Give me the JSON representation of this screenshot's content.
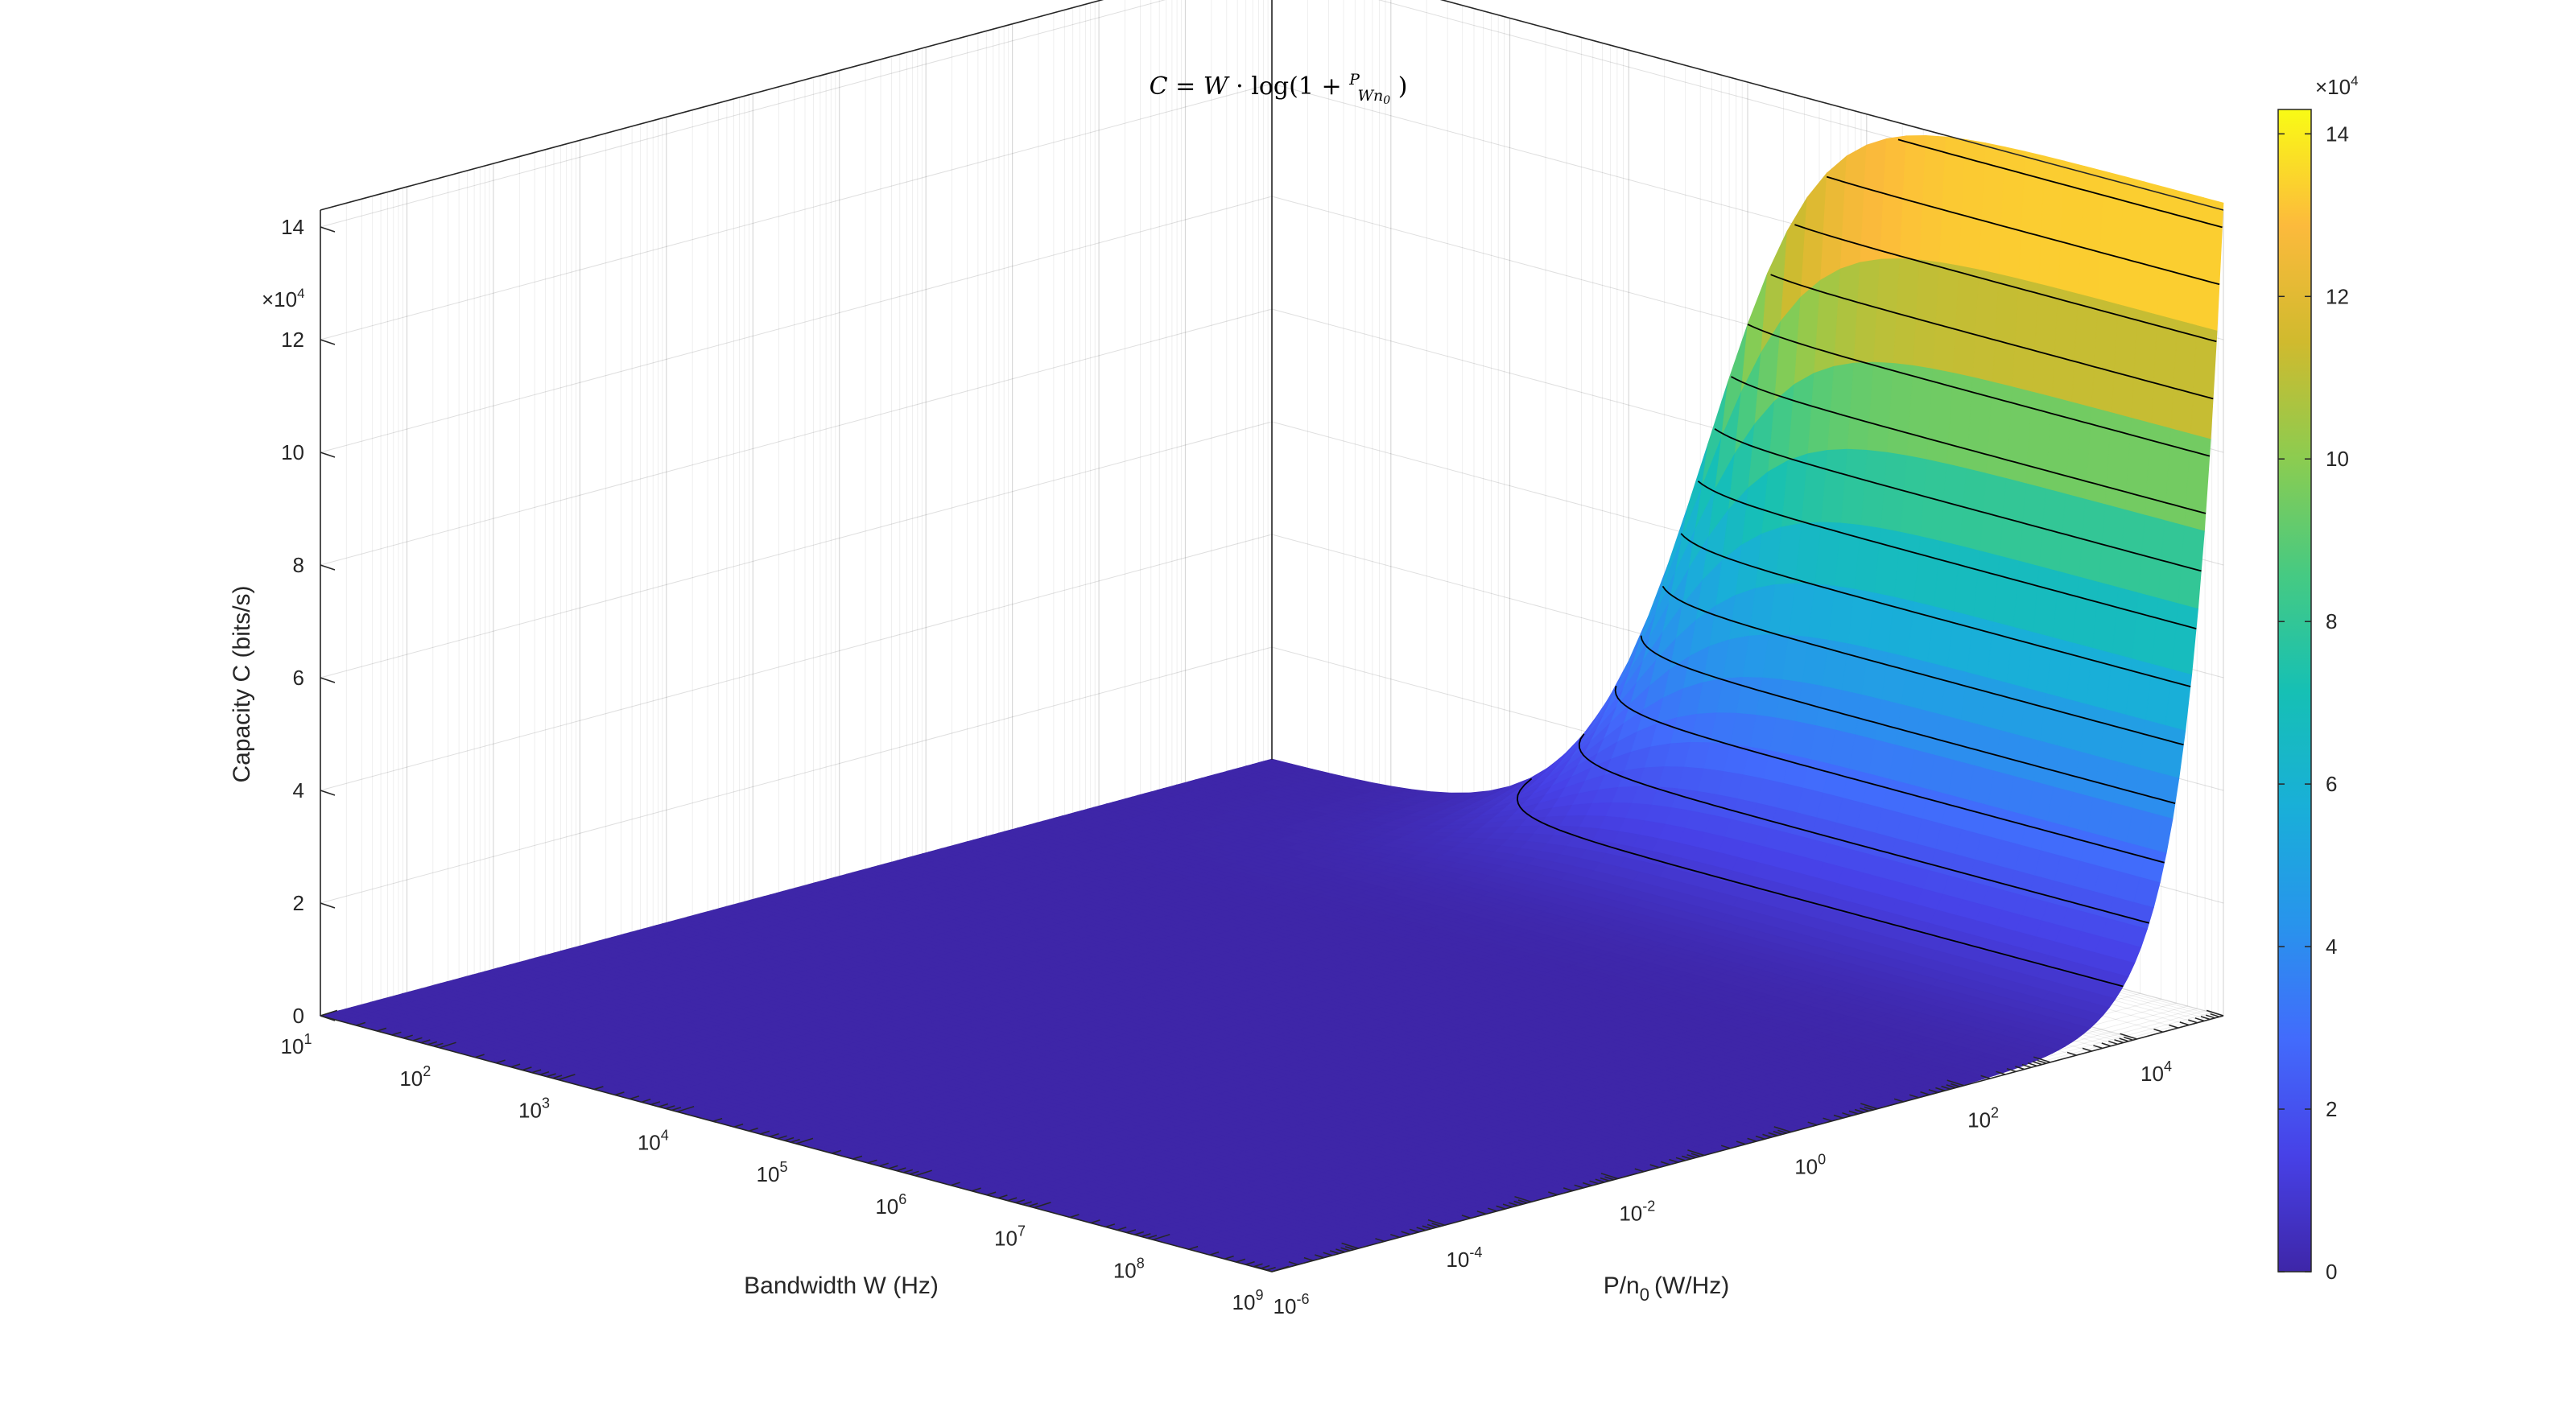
{
  "chart_data": {
    "type": "surface",
    "title": "C = W · log(1 + P / (W n0))",
    "title_parts": {
      "lhs": "C",
      "eq": "=",
      "w": "W",
      "dot": "·",
      "log": "log(1 +",
      "num": "P",
      "den": "Wn",
      "den_sub": "0",
      "close": ")"
    },
    "xlabel": "Bandwidth W (Hz)",
    "ylabel": "P/n",
    "ylabel_sub": "0",
    "ylabel_unit": "(W/Hz)",
    "zlabel": "Capacity C (bits/s)",
    "x_scale": "log",
    "y_scale": "log",
    "x_range": [
      10,
      1000000000
    ],
    "y_range": [
      1e-06,
      100000
    ],
    "z_range": [
      0,
      143000
    ],
    "x_ticks": [
      {
        "base": "10",
        "exp": "1"
      },
      {
        "base": "10",
        "exp": "2"
      },
      {
        "base": "10",
        "exp": "3"
      },
      {
        "base": "10",
        "exp": "4"
      },
      {
        "base": "10",
        "exp": "5"
      },
      {
        "base": "10",
        "exp": "6"
      },
      {
        "base": "10",
        "exp": "7"
      },
      {
        "base": "10",
        "exp": "8"
      },
      {
        "base": "10",
        "exp": "9"
      }
    ],
    "y_ticks": [
      {
        "base": "10",
        "exp": "-6"
      },
      {
        "base": "10",
        "exp": "-4"
      },
      {
        "base": "10",
        "exp": "-2"
      },
      {
        "base": "10",
        "exp": "0"
      },
      {
        "base": "10",
        "exp": "2"
      },
      {
        "base": "10",
        "exp": "4"
      }
    ],
    "z_ticks": [
      "0",
      "2",
      "4",
      "6",
      "8",
      "10",
      "12",
      "14"
    ],
    "z_multiplier": {
      "base": "×10",
      "exp": "4"
    },
    "grid": true,
    "colormap": "parula",
    "colorbar": {
      "position": "right",
      "range": [
        0,
        143000
      ],
      "ticks": [
        "0",
        "2",
        "4",
        "6",
        "8",
        "10",
        "12",
        "14"
      ],
      "multiplier": {
        "base": "×10",
        "exp": "4"
      }
    },
    "contour_levels": [
      10000,
      20000,
      30000,
      40000,
      50000,
      60000,
      70000,
      80000,
      90000,
      100000,
      110000,
      120000,
      130000,
      140000
    ],
    "function": "C = W * log2(1 + P/(W*n0))"
  }
}
